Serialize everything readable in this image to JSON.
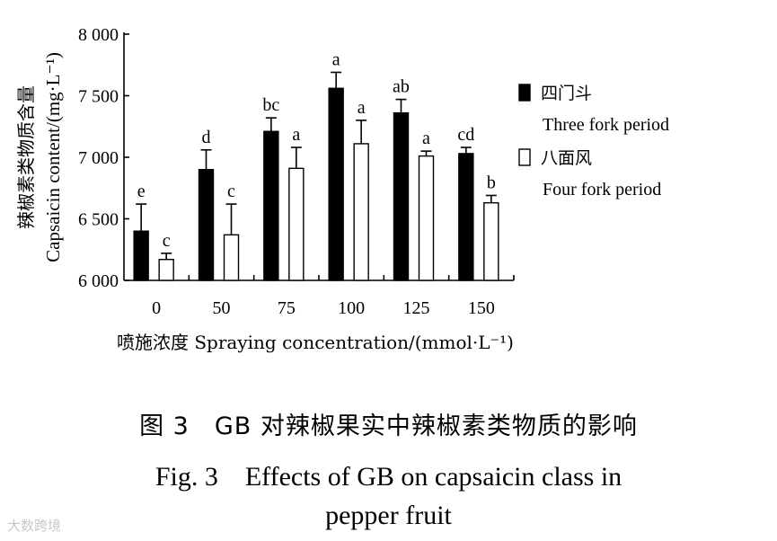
{
  "chart_data": {
    "type": "bar",
    "categories": [
      "0",
      "50",
      "75",
      "100",
      "125",
      "150"
    ],
    "series": [
      {
        "name": "四门斗",
        "name_en": "Three fork period",
        "color": "#000000",
        "values": [
          6400,
          6900,
          7210,
          7560,
          7360,
          7030
        ],
        "errors": [
          220,
          160,
          110,
          130,
          110,
          50
        ],
        "letters": [
          "e",
          "d",
          "bc",
          "a",
          "ab",
          "cd"
        ]
      },
      {
        "name": "八面风",
        "name_en": "Four fork period",
        "color": "#ffffff",
        "values": [
          6170,
          6370,
          6910,
          7110,
          7010,
          6630
        ],
        "errors": [
          50,
          250,
          170,
          190,
          40,
          60
        ],
        "letters": [
          "c",
          "c",
          "a",
          "a",
          "a",
          "b"
        ]
      }
    ],
    "ylim": [
      6000,
      8000
    ],
    "yticks": [
      6000,
      6500,
      7000,
      7500,
      8000
    ],
    "ytick_labels": [
      "6 000",
      "6 500",
      "7 000",
      "7 500",
      "8 000"
    ],
    "ylabel_zh": "辣椒素类物质含量",
    "ylabel_en": "Capsaicin content/(mg·L⁻¹)",
    "xlabel": "喷施浓度 Spraying concentration/(mmol·L⁻¹)",
    "legend_position": "right"
  },
  "caption": {
    "zh": "图 3　GB 对辣椒果实中辣椒素类物质的影响",
    "en_line1": "Fig. 3　Effects of GB on capsaicin class in",
    "en_line2": "pepper fruit"
  },
  "watermark": "大数跨境"
}
